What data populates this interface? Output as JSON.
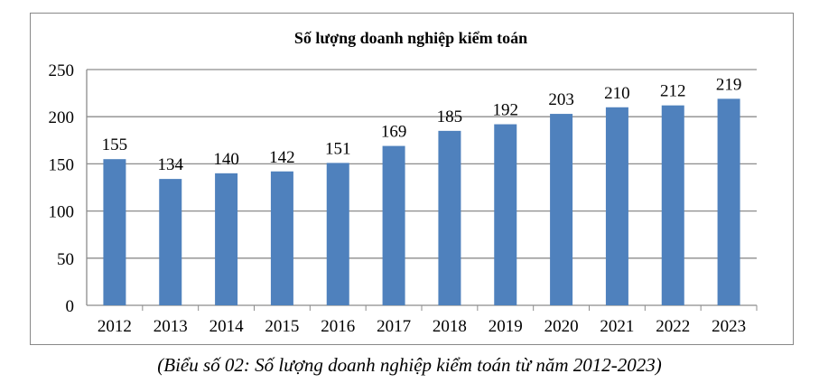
{
  "chart_data": {
    "type": "bar",
    "title": "Số lượng doanh nghiệp kiểm toán",
    "categories": [
      "2012",
      "2013",
      "2014",
      "2015",
      "2016",
      "2017",
      "2018",
      "2019",
      "2020",
      "2021",
      "2022",
      "2023"
    ],
    "values": [
      155,
      134,
      140,
      142,
      151,
      169,
      185,
      192,
      203,
      210,
      212,
      219
    ],
    "ylim": [
      0,
      250
    ],
    "yticks": [
      0,
      50,
      100,
      150,
      200,
      250
    ],
    "grid": true,
    "bar_color": "#4F81BD",
    "data_labels": true
  },
  "caption": "(Biểu số 02: Số lượng doanh nghiệp kiểm toán từ năm 2012-2023)"
}
